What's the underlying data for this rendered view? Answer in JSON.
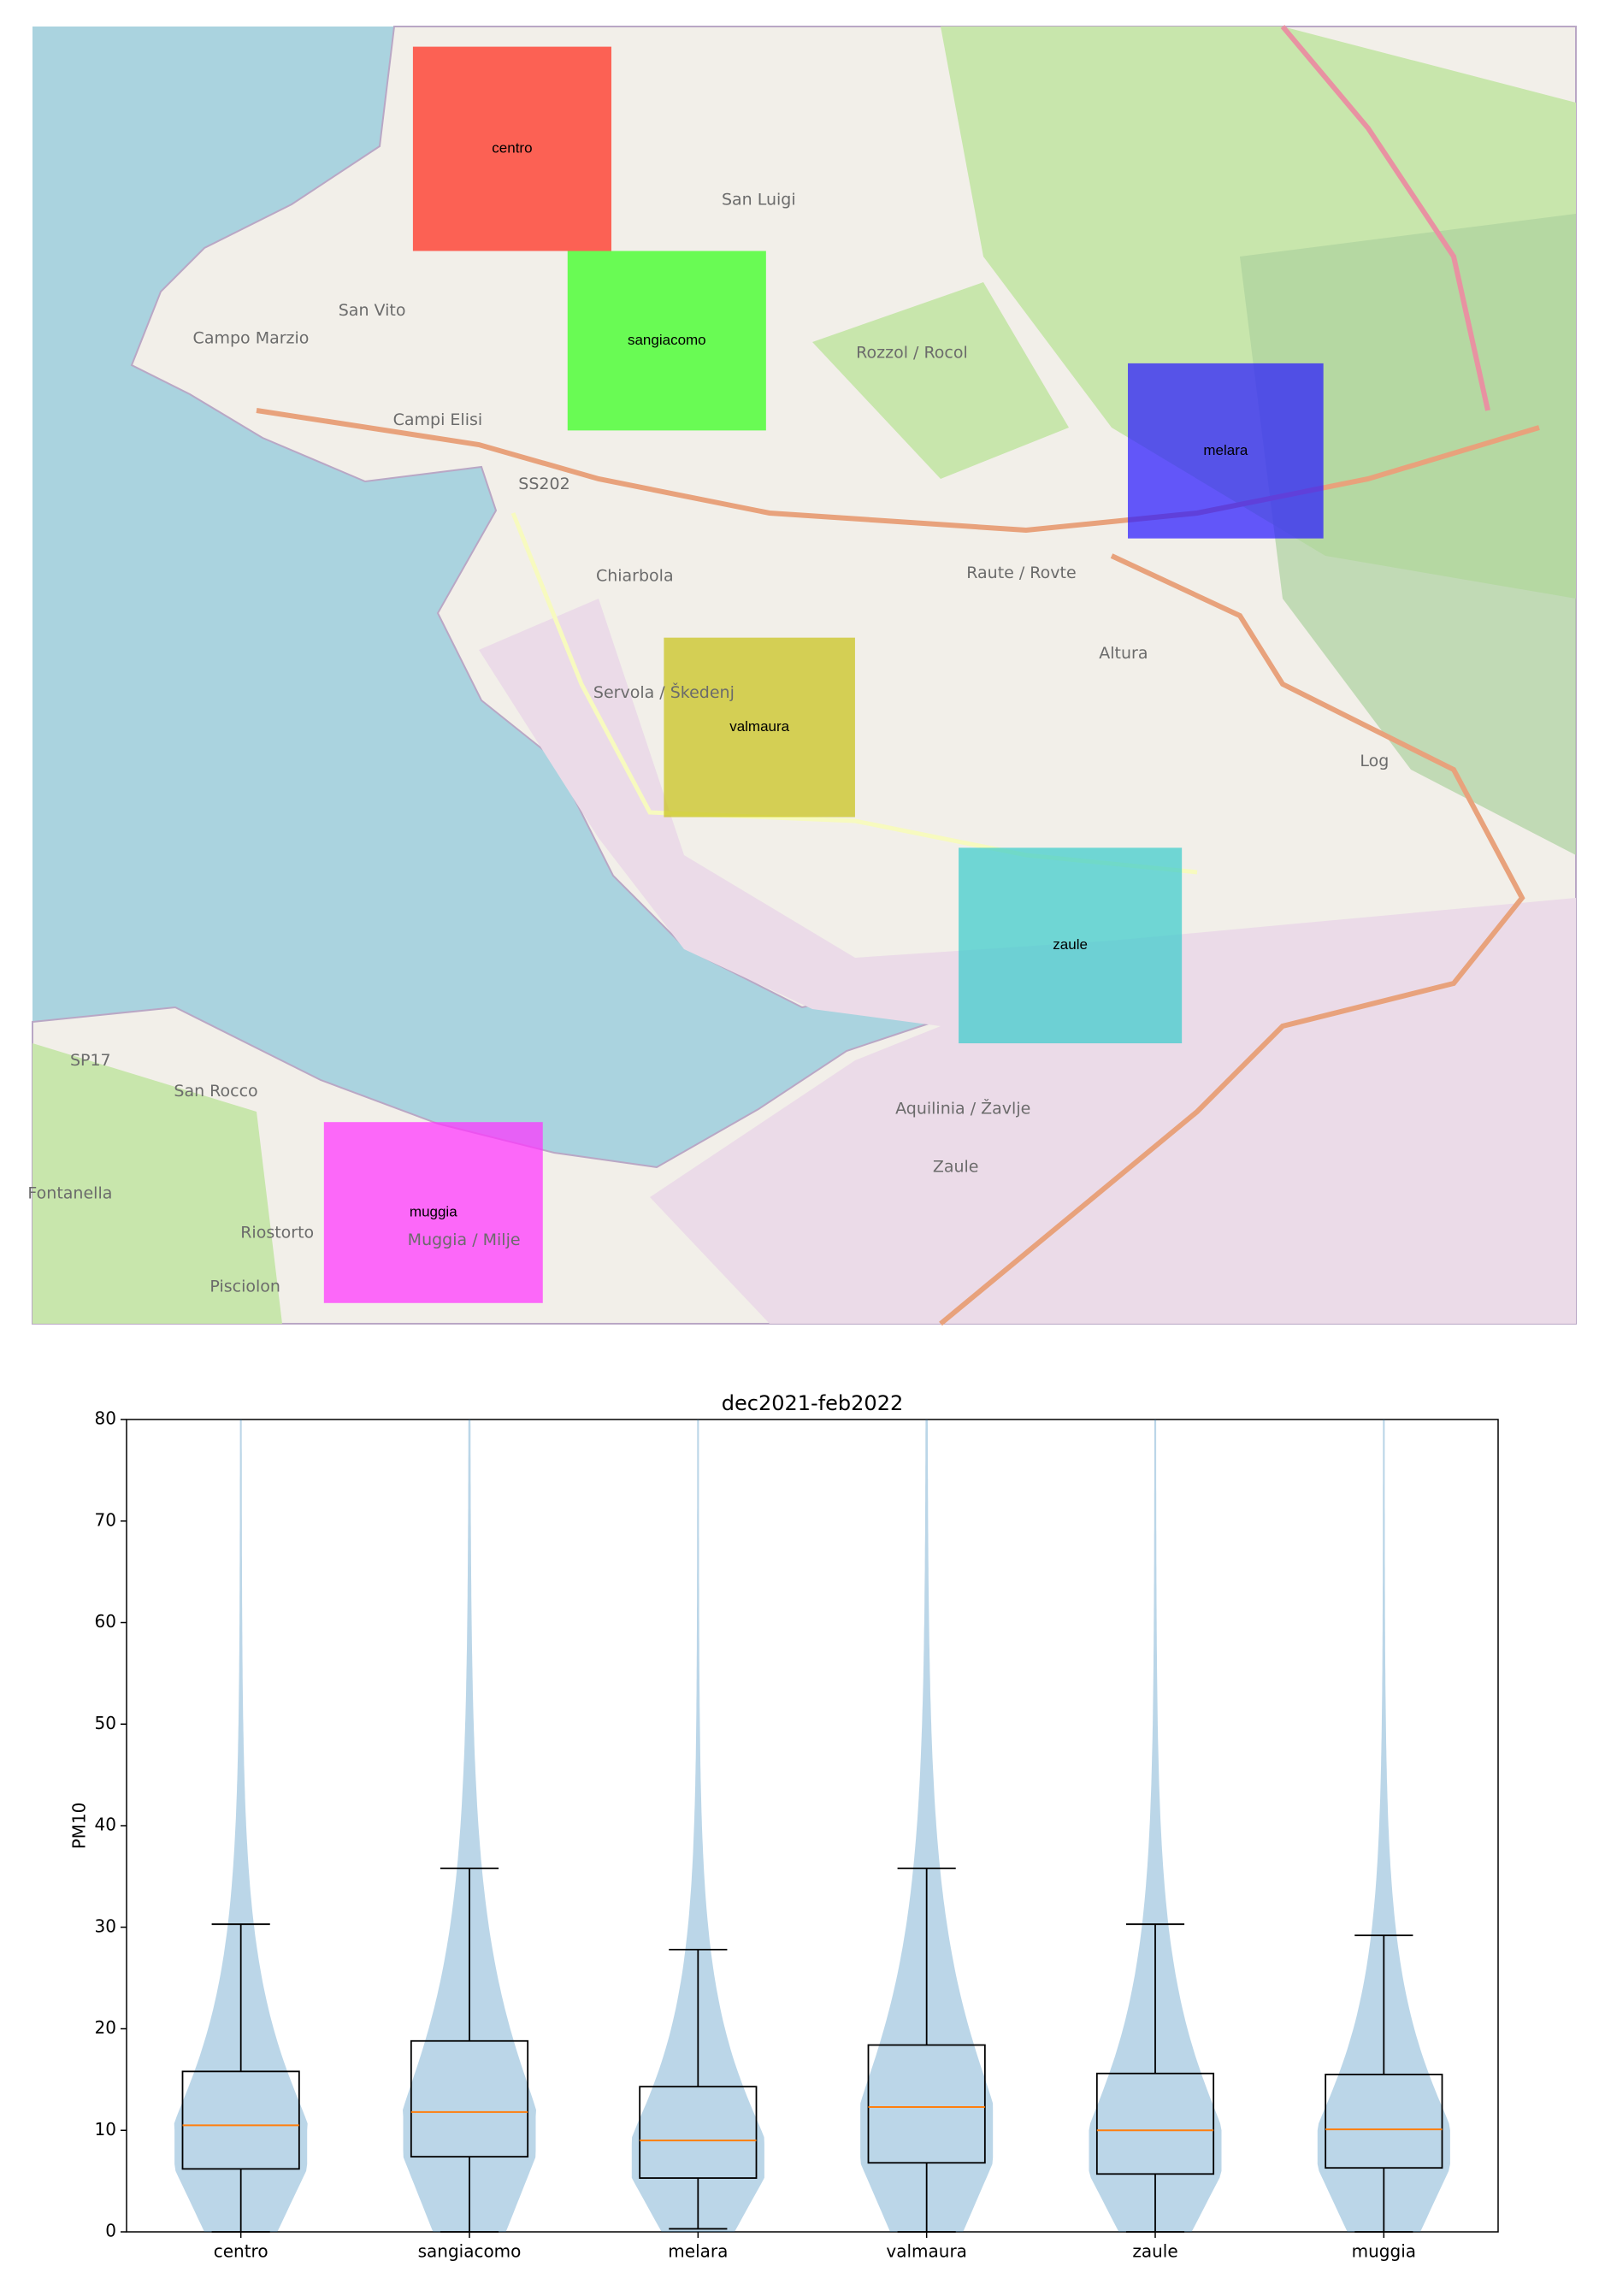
{
  "map": {
    "regions": [
      {
        "name": "centro",
        "color": "#ff2a1a"
      },
      {
        "name": "sangiacomo",
        "color": "#33ff1a"
      },
      {
        "name": "melara",
        "color": "#2a1aff"
      },
      {
        "name": "valmaura",
        "color": "#c8c21a"
      },
      {
        "name": "zaule",
        "color": "#3ccccc"
      },
      {
        "name": "muggia",
        "color": "#ff33ff"
      }
    ],
    "places": [
      "San Luigi",
      "San Vito",
      "Campo Marzio",
      "Campi Elisi",
      "Chiarbola",
      "Servola / Škedenj",
      "Rozzol / Rocol",
      "Raute / Rovte",
      "Altura",
      "Log",
      "San Rocco",
      "Fontanella",
      "Riostorto",
      "Pisciolon",
      "Muggia / Milje",
      "Aquilinia / Žavlje",
      "Zaule",
      "SS202",
      "SP17"
    ]
  },
  "chart_data": {
    "type": "violin-box",
    "title": "dec2021-feb2022",
    "y_label": "PM10",
    "categories": [
      "centro",
      "sangiacomo",
      "melara",
      "valmaura",
      "zaule",
      "muggia"
    ],
    "whisker_low": [
      0,
      0,
      0.3,
      0,
      0,
      0
    ],
    "q1": [
      6.2,
      7.4,
      5.3,
      6.8,
      5.7,
      6.3
    ],
    "median": [
      10.5,
      11.8,
      9.0,
      12.3,
      10.0,
      10.1
    ],
    "q3": [
      15.8,
      18.8,
      14.3,
      18.4,
      15.6,
      15.5
    ],
    "whisker_high": [
      30.3,
      35.8,
      27.8,
      35.8,
      30.3,
      29.2
    ],
    "max": [
      80,
      80,
      80,
      80,
      80,
      80
    ],
    "violin_color": "#1f77b4",
    "median_color": "#ff7f0e",
    "ylim": [
      0,
      80
    ],
    "yticks": [
      0,
      10,
      20,
      30,
      40,
      50,
      60,
      70,
      80
    ]
  }
}
